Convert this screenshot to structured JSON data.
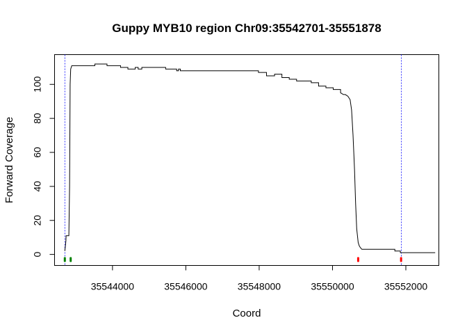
{
  "chart_data": {
    "type": "line",
    "title": "Guppy MYB10 region Chr09:35542701-35551878",
    "xlabel": "Coord",
    "ylabel": "Forward Coverage",
    "xlim": [
      35542420,
      35552900
    ],
    "ylim": [
      -6.5,
      117.5
    ],
    "x_ticks": [
      35544000,
      35546000,
      35548000,
      35550000,
      35552000
    ],
    "x_tick_labels": [
      "35544000",
      "35546000",
      "35548000",
      "35550000",
      "35552000"
    ],
    "y_ticks": [
      0,
      20,
      40,
      60,
      80,
      100
    ],
    "y_tick_labels": [
      "0",
      "20",
      "40",
      "60",
      "80",
      "100"
    ],
    "grid": false,
    "vertical_lines": {
      "color": "#0000ff",
      "x": [
        35542701,
        35551878
      ]
    },
    "markers": [
      {
        "x": 35542700,
        "y": -3,
        "color": "#008000"
      },
      {
        "x": 35542860,
        "y": -3,
        "color": "#008000"
      },
      {
        "x": 35550700,
        "y": -3,
        "color": "#ff0000"
      },
      {
        "x": 35551870,
        "y": -3,
        "color": "#ff0000"
      }
    ],
    "series": [
      {
        "color": "#000000",
        "x": [
          35542701,
          35542730,
          35542735,
          35542800,
          35542810,
          35542830,
          35542845,
          35542860,
          35542890,
          35543000,
          35543520,
          35543520,
          35543850,
          35543850,
          35544220,
          35544220,
          35544420,
          35544420,
          35544620,
          35544620,
          35544700,
          35544700,
          35544800,
          35544800,
          35545450,
          35545450,
          35545750,
          35545750,
          35545800,
          35545800,
          35545850,
          35545850,
          35547980,
          35547980,
          35548200,
          35548200,
          35548420,
          35548420,
          35548620,
          35548620,
          35548820,
          35548820,
          35549020,
          35549020,
          35549420,
          35549420,
          35549620,
          35549620,
          35549820,
          35549820,
          35550020,
          35550020,
          35550220,
          35550220,
          35550300,
          35550350,
          35550420,
          35550480,
          35550520,
          35550560,
          35550600,
          35550630,
          35550660,
          35550700,
          35550730,
          35550760,
          35550800,
          35550850,
          35550900,
          35551000,
          35551700,
          35551700,
          35551780,
          35551780,
          35551850,
          35551850,
          35552500,
          35552800
        ],
        "y": [
          2,
          8,
          11,
          11,
          11,
          40,
          100,
          109,
          111,
          111,
          111,
          112,
          112,
          111,
          111,
          110,
          110,
          109,
          109,
          110,
          110,
          109,
          109,
          110,
          110,
          109,
          109,
          108,
          108,
          109,
          109,
          108,
          108,
          107,
          107,
          105,
          105,
          106,
          106,
          104,
          104,
          103,
          103,
          102,
          102,
          101,
          101,
          99,
          99,
          98,
          98,
          97,
          97,
          95,
          94,
          94,
          93,
          91,
          85,
          70,
          50,
          30,
          15,
          7,
          5,
          4,
          3,
          3,
          3,
          3,
          3,
          2,
          2,
          2,
          2,
          1,
          1,
          1
        ]
      }
    ]
  }
}
